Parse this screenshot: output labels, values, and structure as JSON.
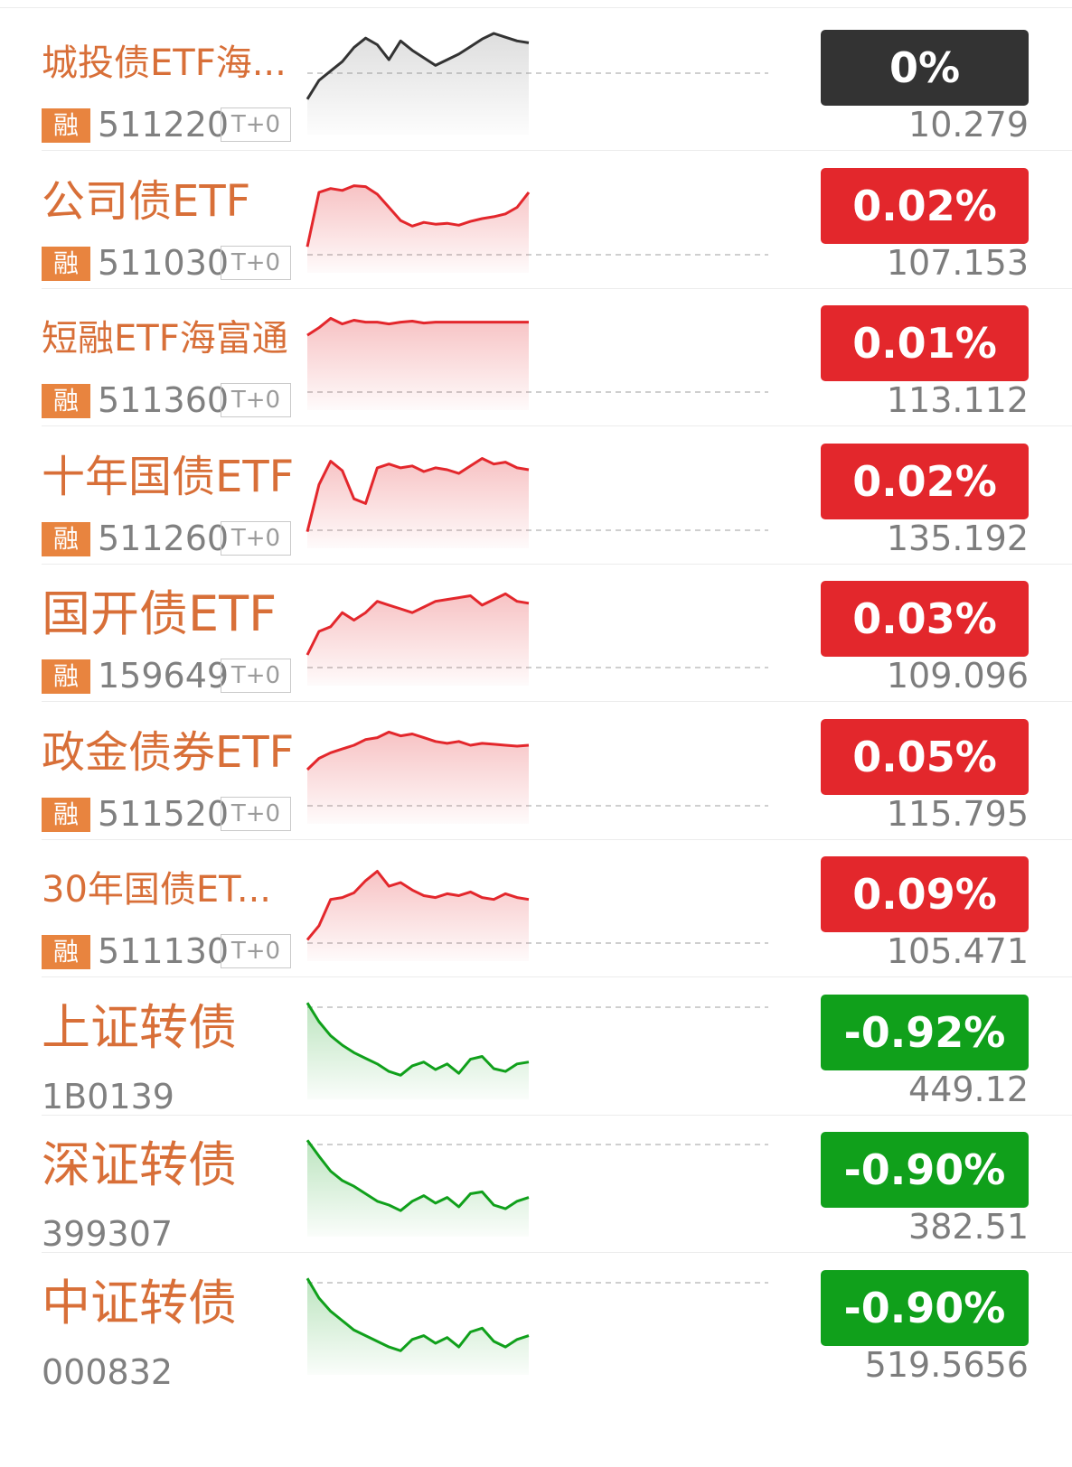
{
  "colors": {
    "name": "#d86f38",
    "rong_badge": "#e8843f",
    "flat": "#333333",
    "up": "#e3272c",
    "down": "#10a01b",
    "code": "#808080",
    "price": "#7d7d7d"
  },
  "rong_label": "融",
  "tplus_label": "T+0",
  "rows": [
    {
      "name": "城投债ETF海...",
      "rong": true,
      "code": "511220",
      "tplus": true,
      "change": "0%",
      "price": "10.279",
      "status": "flat",
      "spark": [
        30,
        50,
        60,
        70,
        85,
        95,
        88,
        72,
        92,
        82,
        74,
        66,
        72,
        78,
        86,
        94,
        100,
        96,
        92,
        90
      ]
    },
    {
      "name": "公司债ETF",
      "rong": true,
      "code": "511030",
      "tplus": true,
      "change": "0.02%",
      "price": "107.153",
      "status": "up",
      "spark": [
        20,
        78,
        82,
        80,
        85,
        84,
        76,
        62,
        48,
        42,
        46,
        44,
        45,
        43,
        47,
        50,
        52,
        55,
        62,
        78
      ]
    },
    {
      "name": "短融ETF海富通",
      "rong": true,
      "code": "511360",
      "tplus": true,
      "change": "0.01%",
      "price": "113.112",
      "status": "up",
      "spark": [
        72,
        80,
        90,
        84,
        88,
        86,
        86,
        84,
        86,
        87,
        85,
        86,
        86,
        86,
        86,
        86,
        86,
        86,
        86,
        86
      ]
    },
    {
      "name": "十年国债ETF",
      "rong": true,
      "code": "511260",
      "tplus": true,
      "change": "0.02%",
      "price": "135.192",
      "status": "up",
      "spark": [
        10,
        60,
        85,
        75,
        45,
        40,
        78,
        82,
        78,
        80,
        74,
        78,
        76,
        72,
        80,
        88,
        82,
        84,
        78,
        76
      ]
    },
    {
      "name": "国开债ETF",
      "rong": true,
      "code": "159649",
      "tplus": true,
      "change": "0.03%",
      "price": "109.096",
      "status": "up",
      "spark": [
        25,
        50,
        55,
        70,
        62,
        70,
        82,
        78,
        74,
        70,
        76,
        82,
        84,
        86,
        88,
        78,
        84,
        90,
        82,
        80
      ]
    },
    {
      "name": "政金债券ETF",
      "rong": true,
      "code": "511520",
      "tplus": true,
      "change": "0.05%",
      "price": "115.795",
      "status": "up",
      "spark": [
        50,
        62,
        68,
        72,
        76,
        82,
        84,
        90,
        86,
        88,
        84,
        80,
        78,
        80,
        76,
        78,
        77,
        76,
        75,
        76
      ]
    },
    {
      "name": "30年国债ET...",
      "rong": true,
      "code": "511130",
      "tplus": true,
      "change": "0.09%",
      "price": "105.471",
      "status": "up",
      "spark": [
        15,
        30,
        58,
        60,
        65,
        78,
        88,
        72,
        76,
        68,
        62,
        60,
        64,
        62,
        66,
        60,
        58,
        64,
        60,
        58
      ]
    },
    {
      "name": "上证转债",
      "rong": false,
      "code": "1B0139",
      "tplus": false,
      "change": "-0.92%",
      "price": "449.12",
      "status": "down",
      "spark": [
        95,
        75,
        60,
        50,
        42,
        36,
        30,
        22,
        18,
        28,
        32,
        24,
        30,
        20,
        35,
        38,
        25,
        22,
        30,
        32
      ]
    },
    {
      "name": "深证转债",
      "rong": false,
      "code": "399307",
      "tplus": false,
      "change": "-0.90%",
      "price": "382.51",
      "status": "down",
      "spark": [
        95,
        78,
        62,
        52,
        46,
        38,
        30,
        26,
        20,
        30,
        36,
        28,
        34,
        24,
        38,
        40,
        26,
        22,
        30,
        34
      ]
    },
    {
      "name": "中证转债",
      "rong": false,
      "code": "000832",
      "tplus": false,
      "change": "-0.90%",
      "price": "519.5656",
      "status": "down",
      "spark": [
        95,
        74,
        60,
        50,
        40,
        34,
        28,
        22,
        18,
        30,
        34,
        26,
        32,
        22,
        38,
        42,
        28,
        22,
        30,
        34
      ]
    }
  ]
}
